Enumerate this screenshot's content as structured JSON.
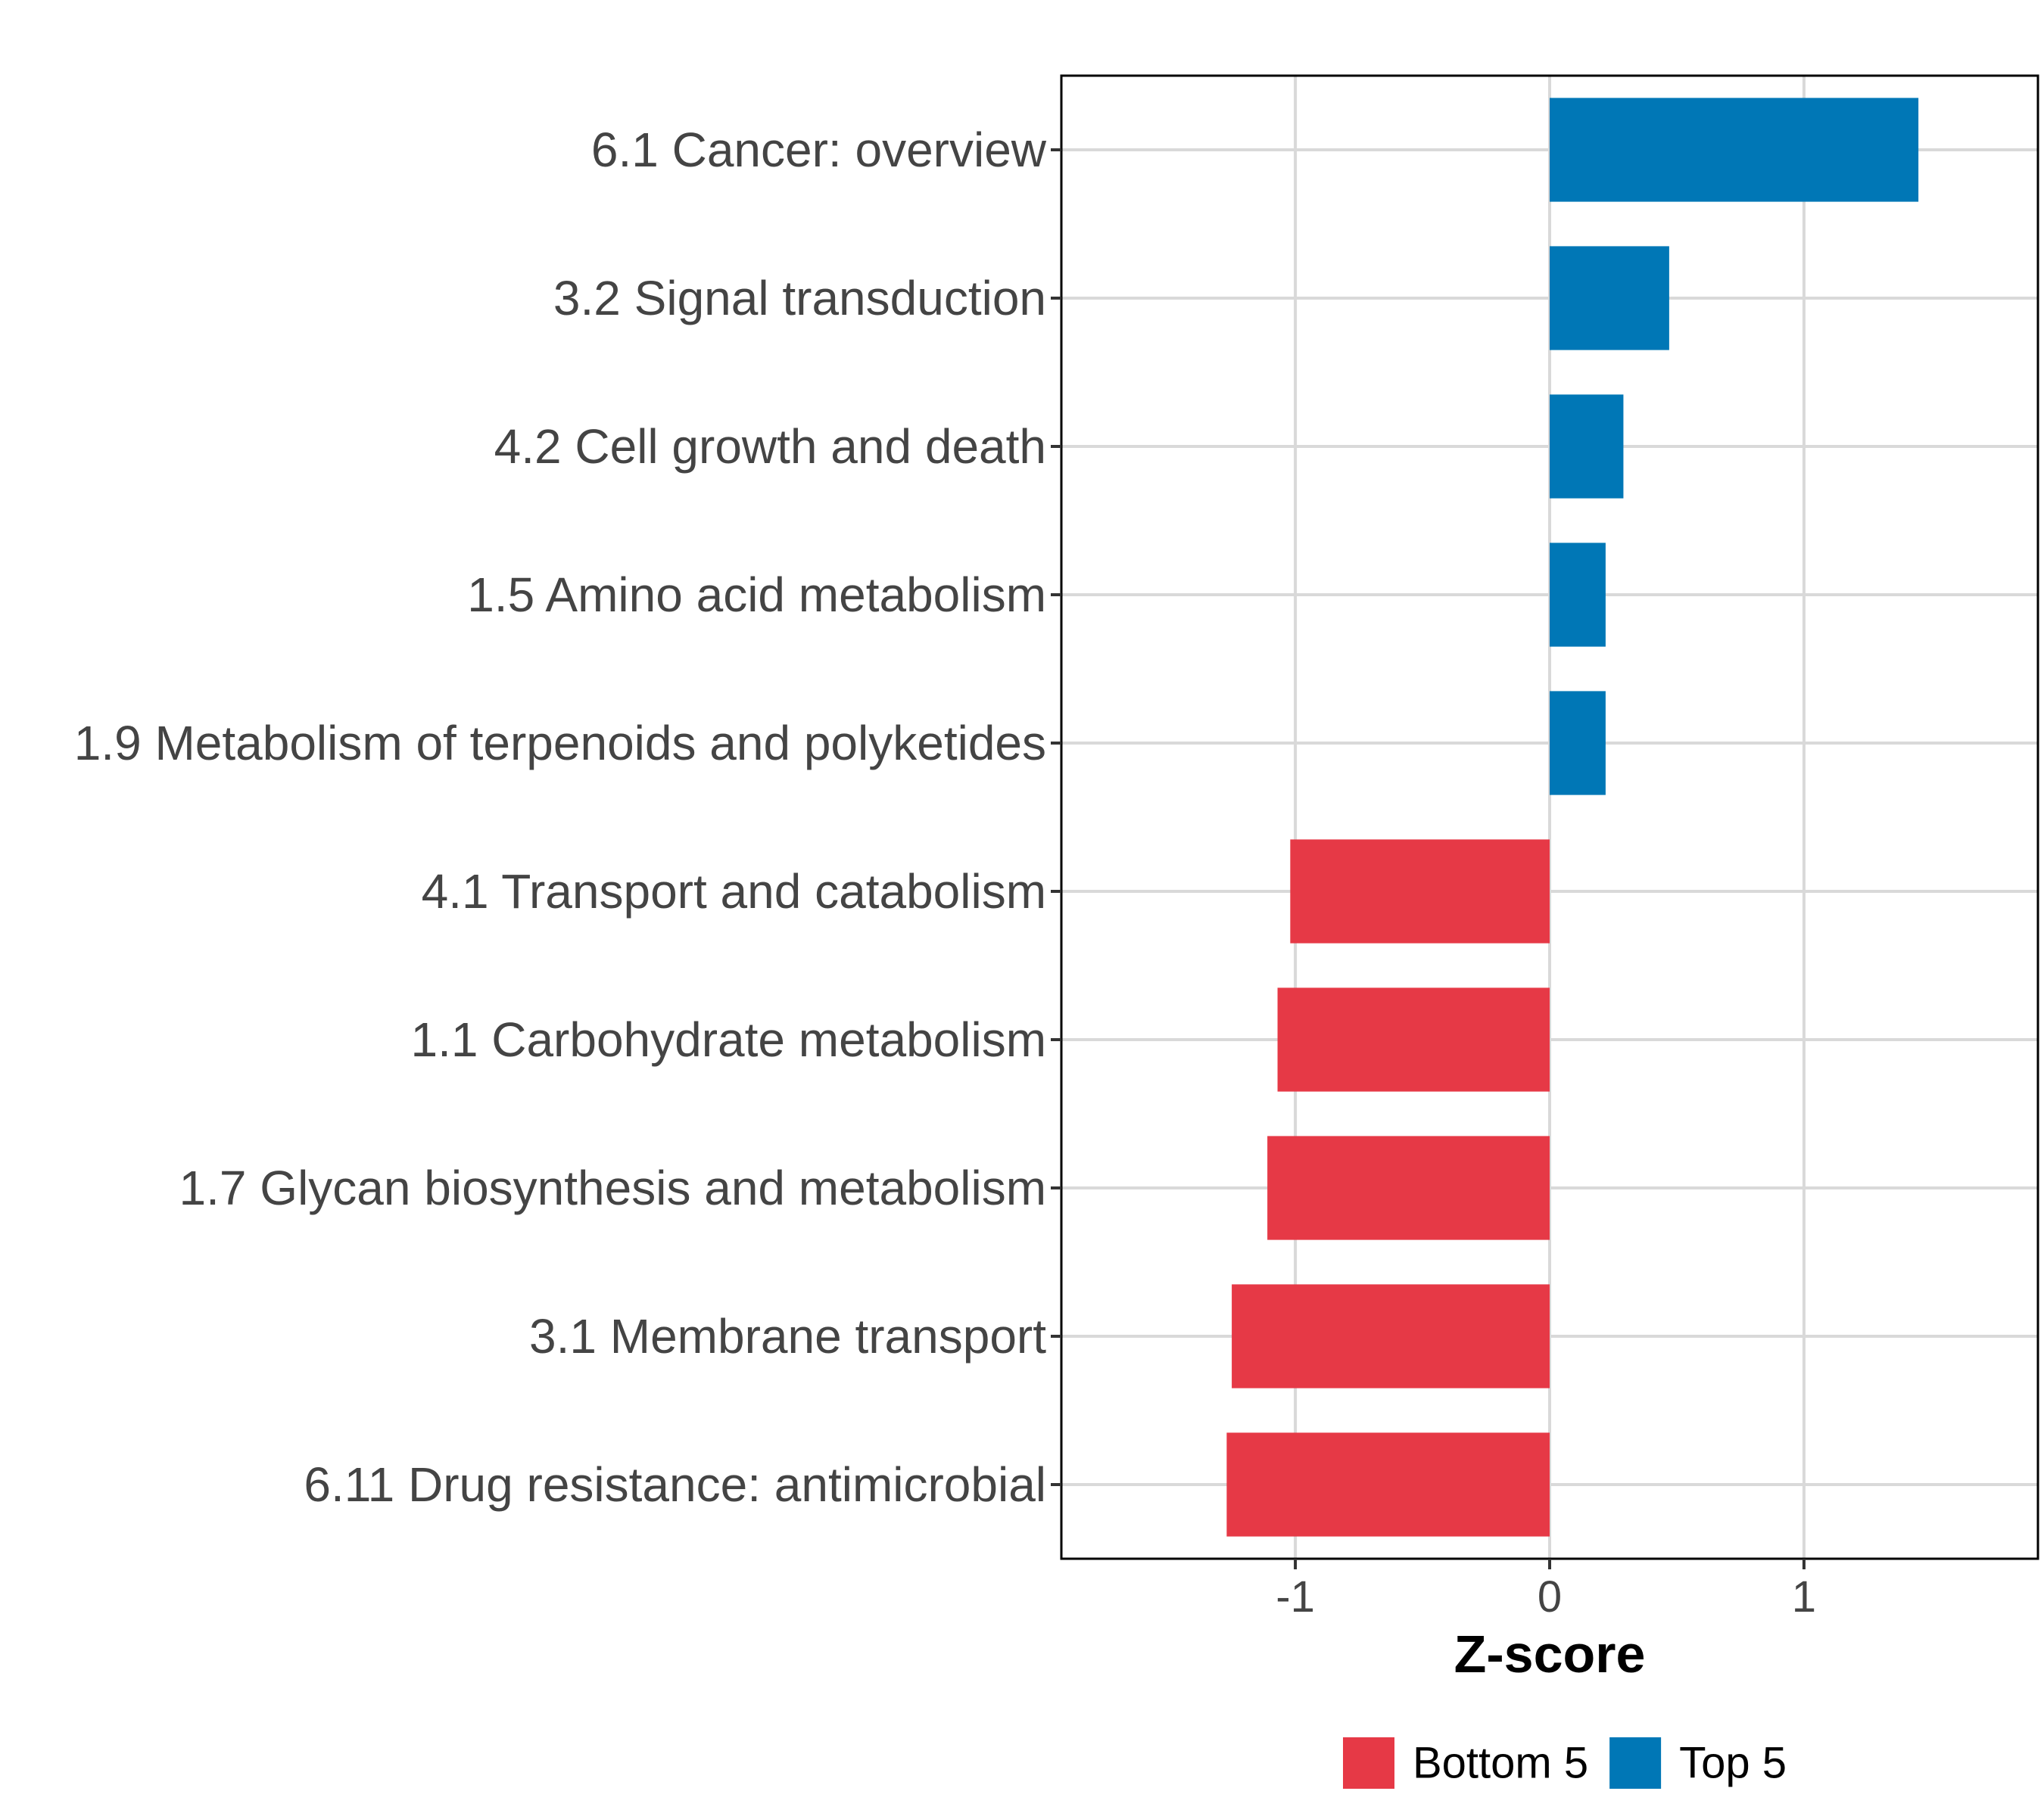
{
  "chart_data": {
    "type": "bar",
    "orientation": "horizontal",
    "xlabel": "Z-score",
    "xlim": [
      -1.92,
      1.92
    ],
    "x_ticks": [
      {
        "value": -1,
        "label": "-1"
      },
      {
        "value": 0,
        "label": "0"
      },
      {
        "value": 1,
        "label": "1"
      }
    ],
    "grid": true,
    "legend_position": "bottom",
    "groups": [
      {
        "name": "Bottom 5",
        "color": "#E63946"
      },
      {
        "name": "Top 5",
        "color": "#0077B6"
      }
    ],
    "bars": [
      {
        "category": "6.1 Cancer: overview",
        "value": 1.45,
        "group": "Top 5"
      },
      {
        "category": "3.2 Signal transduction",
        "value": 0.47,
        "group": "Top 5"
      },
      {
        "category": "4.2 Cell growth and death",
        "value": 0.29,
        "group": "Top 5"
      },
      {
        "category": "1.5 Amino acid metabolism",
        "value": 0.22,
        "group": "Top 5"
      },
      {
        "category": "1.9 Metabolism of terpenoids and polyketides",
        "value": 0.22,
        "group": "Top 5"
      },
      {
        "category": "4.1 Transport and catabolism",
        "value": -1.02,
        "group": "Bottom 5"
      },
      {
        "category": "1.1 Carbohydrate metabolism",
        "value": -1.07,
        "group": "Bottom 5"
      },
      {
        "category": "1.7 Glycan biosynthesis and metabolism",
        "value": -1.11,
        "group": "Bottom 5"
      },
      {
        "category": "3.1 Membrane transport",
        "value": -1.25,
        "group": "Bottom 5"
      },
      {
        "category": "6.11 Drug resistance: antimicrobial",
        "value": -1.27,
        "group": "Bottom 5"
      }
    ]
  }
}
